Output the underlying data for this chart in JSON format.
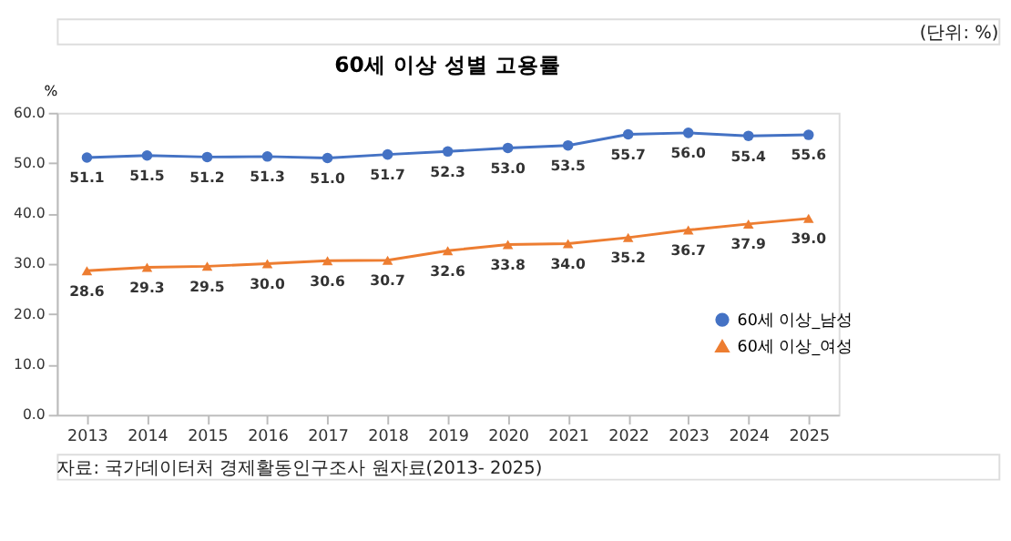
{
  "chart_data": {
    "type": "line",
    "title": "60세 이상 성별 고용률",
    "ylabel": "%",
    "categories": [
      "2013",
      "2014",
      "2015",
      "2016",
      "2017",
      "2018",
      "2019",
      "2020",
      "2021",
      "2022",
      "2023",
      "2024",
      "2025"
    ],
    "series": [
      {
        "name": "60세 이상_남성",
        "color": "#4472c4",
        "marker": "circle",
        "values": [
          51.1,
          51.5,
          51.2,
          51.3,
          51.0,
          51.7,
          52.3,
          53.0,
          53.5,
          55.7,
          56.0,
          55.4,
          55.6
        ],
        "value_labels": [
          "51.1",
          "51.5",
          "51.2",
          "51.3",
          "51.0",
          "51.7",
          "52.3",
          "53.0",
          "53.5",
          "55.7",
          "56.0",
          "55.4",
          "55.6"
        ]
      },
      {
        "name": "60세 이상_여성",
        "color": "#ed7d31",
        "marker": "triangle",
        "values": [
          28.6,
          29.3,
          29.5,
          30.0,
          30.6,
          30.7,
          32.6,
          33.8,
          34.0,
          35.2,
          36.7,
          37.9,
          39.0
        ],
        "value_labels": [
          "28.6",
          "29.3",
          "29.5",
          "30.0",
          "30.6",
          "30.7",
          "32.6",
          "33.8",
          "34.0",
          "35.2",
          "36.7",
          "37.9",
          "39.0"
        ]
      }
    ],
    "ylim": [
      0,
      60
    ],
    "yticks": [
      {
        "value": 0,
        "label": "0.0"
      },
      {
        "value": 10,
        "label": "10.0"
      },
      {
        "value": 20,
        "label": "20.0"
      },
      {
        "value": 30,
        "label": "30.0"
      },
      {
        "value": 40,
        "label": "40.0"
      },
      {
        "value": 50,
        "label": "50.0"
      },
      {
        "value": 60,
        "label": "60.0"
      }
    ],
    "legend": "right",
    "grid": false,
    "annotations": [
      "(단위: %)",
      "자료: 국가데이터처 경제활동인구조사 원자료(2013- 2025)"
    ]
  }
}
